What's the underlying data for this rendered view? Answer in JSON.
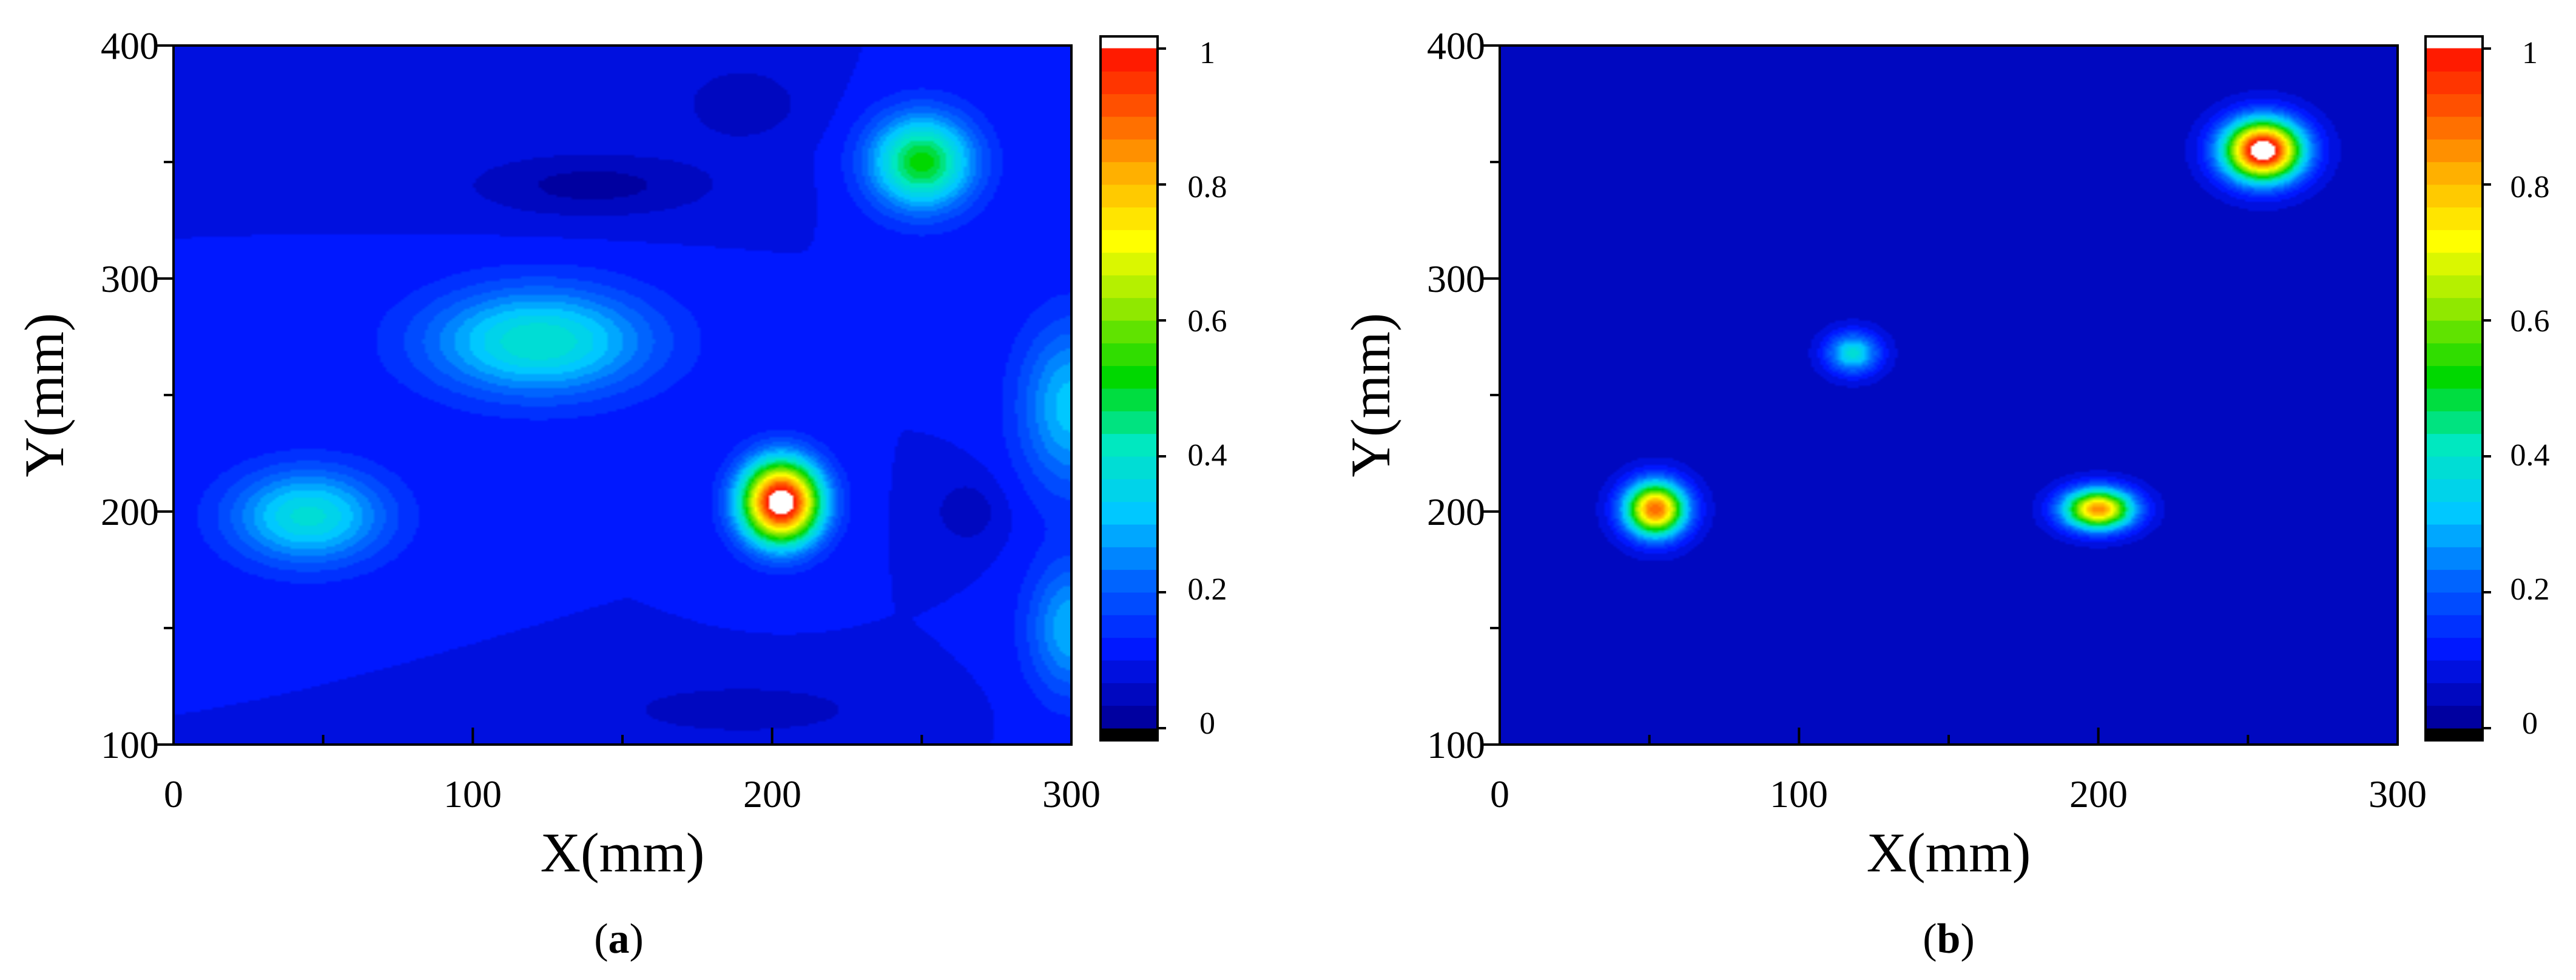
{
  "chart_data": [
    {
      "type": "heatmap",
      "caption_letter": "a",
      "xlabel": "X(mm)",
      "ylabel": "Y(mm)",
      "xlim": [
        0,
        300
      ],
      "ylim": [
        100,
        400
      ],
      "xticks": [
        "0",
        "100",
        "200",
        "300"
      ],
      "yticks": [
        "100",
        "200",
        "300",
        "400"
      ],
      "colorbar_ticks": [
        "0",
        "0.2",
        "0.4",
        "0.6",
        "0.8",
        "1"
      ],
      "colorbar_range": [
        0,
        1
      ],
      "background_level": 0.1,
      "hotspots": [
        {
          "x": 203,
          "y": 204,
          "peak": 1.0,
          "sx": 9,
          "sy": 12
        },
        {
          "x": 250,
          "y": 350,
          "peak": 0.42,
          "sx": 12,
          "sy": 14
        },
        {
          "x": 122,
          "y": 273,
          "peak": 0.3,
          "sx": 26,
          "sy": 16
        },
        {
          "x": 45,
          "y": 198,
          "peak": 0.28,
          "sx": 18,
          "sy": 14
        },
        {
          "x": 300,
          "y": 245,
          "peak": 0.22,
          "sx": 12,
          "sy": 25
        },
        {
          "x": 300,
          "y": 150,
          "peak": 0.2,
          "sx": 10,
          "sy": 20
        },
        {
          "x": 140,
          "y": 340,
          "peak": -0.08,
          "sx": 30,
          "sy": 10
        },
        {
          "x": 190,
          "y": 115,
          "peak": -0.06,
          "sx": 30,
          "sy": 8
        },
        {
          "x": 265,
          "y": 200,
          "peak": -0.06,
          "sx": 8,
          "sy": 10
        },
        {
          "x": 190,
          "y": 375,
          "peak": -0.06,
          "sx": 15,
          "sy": 12
        }
      ]
    },
    {
      "type": "heatmap",
      "caption_letter": "b",
      "xlabel": "X(mm)",
      "ylabel": "Y(mm)",
      "xlim": [
        0,
        300
      ],
      "ylim": [
        100,
        400
      ],
      "xticks": [
        "0",
        "100",
        "200",
        "300"
      ],
      "yticks": [
        "100",
        "200",
        "300",
        "400"
      ],
      "colorbar_ticks": [
        "0",
        "0.2",
        "0.4",
        "0.6",
        "0.8",
        "1"
      ],
      "colorbar_range": [
        0,
        1
      ],
      "background_level": 0.05,
      "hotspots": [
        {
          "x": 255,
          "y": 355,
          "peak": 1.05,
          "sx": 9,
          "sy": 9
        },
        {
          "x": 52,
          "y": 201,
          "peak": 0.85,
          "sx": 7,
          "sy": 8
        },
        {
          "x": 200,
          "y": 201,
          "peak": 0.8,
          "sx": 8,
          "sy": 6
        },
        {
          "x": 118,
          "y": 268,
          "peak": 0.33,
          "sx": 6,
          "sy": 6
        }
      ]
    }
  ],
  "colors": {
    "colormap": [
      "#0000a0",
      "#0018ff",
      "#0064ff",
      "#00c8ff",
      "#00e8c0",
      "#00d800",
      "#90e800",
      "#ffff00",
      "#ffb000",
      "#ff5000",
      "#ff0000"
    ],
    "over": "#ffffff",
    "under": "#000000"
  }
}
